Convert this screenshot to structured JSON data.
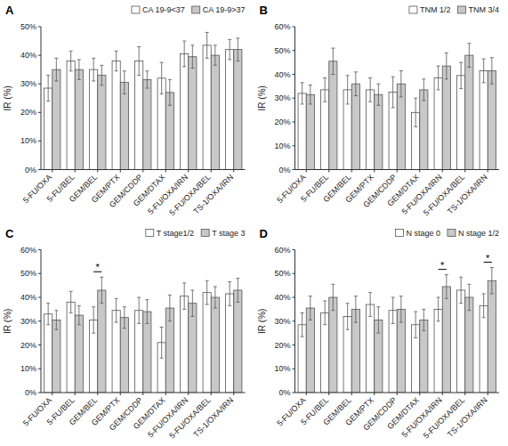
{
  "chart_data": [
    {
      "type": "bar",
      "title": "A",
      "y_label": "IR (%)",
      "categories": [
        "5-FU/OXA",
        "5-FU/BEL",
        "GEM/BEL",
        "GEM/PTX",
        "GEM/CDDP",
        "GEM/DTAX",
        "5-FU/OXA/IRN",
        "5-FU/OXA/BEL",
        "TS-1/OXA/IRN"
      ],
      "series": [
        {
          "name": "CA 19-9<37",
          "color": "#ffffff",
          "values": [
            28.5,
            38.0,
            35.0,
            38.0,
            38.0,
            32.0,
            40.5,
            43.5,
            42.0
          ],
          "errors": [
            4.5,
            3.5,
            4.0,
            3.5,
            5.0,
            5.5,
            4.5,
            4.5,
            3.5
          ]
        },
        {
          "name": "CA 19-9>37",
          "color": "#c8c8c8",
          "values": [
            35.0,
            35.0,
            33.0,
            30.5,
            31.5,
            27.0,
            39.5,
            40.0,
            42.0
          ],
          "errors": [
            4.0,
            3.5,
            3.5,
            4.0,
            3.0,
            4.5,
            4.0,
            3.5,
            4.0
          ]
        }
      ],
      "ylim": [
        0,
        50
      ],
      "yticks": [
        {
          "value": 0,
          "label": "0%"
        },
        {
          "value": 10,
          "label": "10%"
        },
        {
          "value": 20,
          "label": "20%"
        },
        {
          "value": 30,
          "label": "30%"
        },
        {
          "value": 40,
          "label": "40%"
        },
        {
          "value": 50,
          "label": "50%"
        }
      ],
      "annotations": [],
      "legend": "upper right",
      "grid": false
    },
    {
      "type": "bar",
      "title": "B",
      "y_label": "IR (%)",
      "categories": [
        "5-FU/OXA",
        "5-FU/BEL",
        "GEM/BEL",
        "GEM/PTX",
        "GEM/CDDP",
        "GEM/DTAX",
        "5-FU/OXA/IRN",
        "5-FU/OXA/BEL",
        "TS-1/OXA/IRN"
      ],
      "series": [
        {
          "name": "TNM 1/2",
          "color": "#ffffff",
          "values": [
            32.0,
            33.5,
            33.5,
            33.5,
            32.5,
            24.0,
            38.5,
            39.5,
            41.5
          ],
          "errors": [
            4.5,
            5.0,
            6.0,
            5.0,
            6.5,
            6.0,
            5.0,
            5.5,
            5.0
          ]
        },
        {
          "name": "TNM 3/4",
          "color": "#c8c8c8",
          "values": [
            31.5,
            45.5,
            36.0,
            31.5,
            36.0,
            33.5,
            43.5,
            48.0,
            41.5
          ],
          "errors": [
            4.0,
            5.5,
            5.0,
            4.5,
            5.5,
            4.5,
            5.5,
            5.0,
            5.5
          ]
        }
      ],
      "ylim": [
        0,
        60
      ],
      "yticks": [
        {
          "value": 0,
          "label": "0%"
        },
        {
          "value": 10,
          "label": "10%"
        },
        {
          "value": 20,
          "label": "20%"
        },
        {
          "value": 30,
          "label": "30%"
        },
        {
          "value": 40,
          "label": "40%"
        },
        {
          "value": 50,
          "label": "50%"
        },
        {
          "value": 60,
          "label": "60%"
        }
      ],
      "annotations": [],
      "legend": "upper right",
      "grid": false
    },
    {
      "type": "bar",
      "title": "C",
      "y_label": "IR (%)",
      "categories": [
        "5-FU/OXA",
        "5-FU/BEL",
        "GEM/BEL",
        "GEM/PTX",
        "GEM/CDDP",
        "GEM/DTAX",
        "5-FU/OXA/IRN",
        "5-FU/OXA/BEL",
        "TS-1/OXA/IRN"
      ],
      "series": [
        {
          "name": "T stage1/2",
          "color": "#ffffff",
          "values": [
            33.0,
            38.0,
            30.5,
            34.5,
            34.5,
            21.0,
            40.5,
            42.0,
            41.5
          ],
          "errors": [
            4.5,
            4.5,
            5.5,
            5.0,
            5.5,
            6.5,
            5.5,
            5.0,
            5.0
          ]
        },
        {
          "name": "T stage 3",
          "color": "#c8c8c8",
          "values": [
            30.5,
            32.5,
            43.0,
            31.5,
            34.0,
            35.5,
            37.5,
            40.0,
            43.0
          ],
          "errors": [
            4.0,
            4.0,
            5.5,
            4.5,
            5.0,
            5.5,
            5.5,
            4.5,
            5.0
          ]
        }
      ],
      "ylim": [
        0,
        60
      ],
      "yticks": [
        {
          "value": 0,
          "label": "0%"
        },
        {
          "value": 10,
          "label": "10%"
        },
        {
          "value": 20,
          "label": "20%"
        },
        {
          "value": 30,
          "label": "30%"
        },
        {
          "value": 40,
          "label": "40%"
        },
        {
          "value": 50,
          "label": "50%"
        },
        {
          "value": 60,
          "label": "60%"
        }
      ],
      "annotations": [
        {
          "category": "GEM/BEL",
          "text": "*"
        }
      ],
      "legend": "upper right",
      "grid": false
    },
    {
      "type": "bar",
      "title": "D",
      "y_label": "IR (%)",
      "categories": [
        "5-FU/OXA",
        "5-FU/BEL",
        "GEM/BEL",
        "GEM/PTX",
        "GEM/CDDP",
        "GEM/DTAX",
        "5-FU/OXA/IRN",
        "5-FU/OXA/BEL",
        "TS-1/OXA/IRN"
      ],
      "series": [
        {
          "name": "N stage 0",
          "color": "#ffffff",
          "values": [
            28.5,
            33.5,
            32.0,
            37.0,
            34.5,
            28.5,
            35.0,
            43.0,
            36.5
          ],
          "errors": [
            5.0,
            5.0,
            5.5,
            5.0,
            5.5,
            5.5,
            5.0,
            5.5,
            5.0
          ]
        },
        {
          "name": "N stage 1/2",
          "color": "#c8c8c8",
          "values": [
            35.5,
            40.0,
            35.0,
            30.5,
            35.0,
            30.5,
            44.5,
            40.0,
            47.0
          ],
          "errors": [
            5.0,
            5.5,
            5.5,
            5.5,
            5.5,
            4.5,
            5.0,
            5.5,
            5.5
          ]
        }
      ],
      "ylim": [
        0,
        60
      ],
      "yticks": [
        {
          "value": 0,
          "label": "0%"
        },
        {
          "value": 10,
          "label": "10%"
        },
        {
          "value": 20,
          "label": "20%"
        },
        {
          "value": 30,
          "label": "30%"
        },
        {
          "value": 40,
          "label": "40%"
        },
        {
          "value": 50,
          "label": "50%"
        },
        {
          "value": 60,
          "label": "60%"
        }
      ],
      "annotations": [
        {
          "category": "5-FU/OXA/IRN",
          "text": "*"
        },
        {
          "category": "TS-1/OXA/IRN",
          "text": "*"
        }
      ],
      "legend": "upper right",
      "grid": false
    }
  ]
}
